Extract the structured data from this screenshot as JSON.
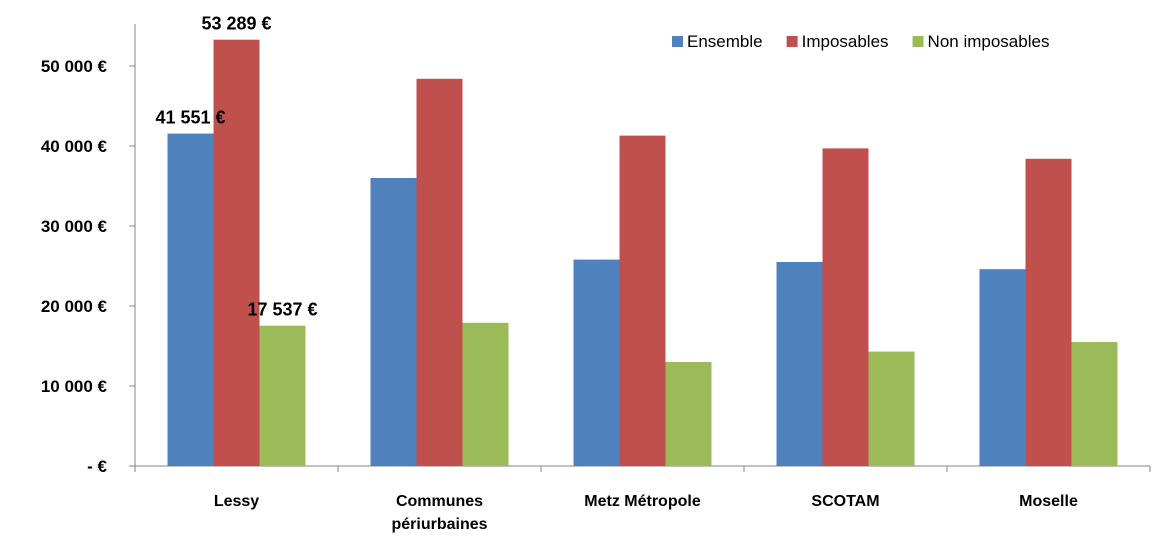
{
  "chart_data": {
    "type": "bar",
    "title": "",
    "xlabel": "",
    "ylabel": "",
    "ylim": [
      0,
      55000
    ],
    "yticks": [
      0,
      10000,
      20000,
      30000,
      40000,
      50000
    ],
    "ytick_labels": [
      "-   €",
      "10 000 €",
      "20 000 €",
      "30 000 €",
      "40 000 €",
      "50 000 €"
    ],
    "grid": false,
    "legend_position": "top-right",
    "categories": [
      [
        "Lessy"
      ],
      [
        "Communes",
        "périurbaines"
      ],
      [
        "Metz Métropole"
      ],
      [
        "SCOTAM"
      ],
      [
        "Moselle"
      ]
    ],
    "series": [
      {
        "name": "Ensemble",
        "color": "#4F81BD",
        "values": [
          41551,
          36000,
          25800,
          25500,
          24600
        ]
      },
      {
        "name": "Imposables",
        "color": "#C0504D",
        "values": [
          53289,
          48400,
          41300,
          39700,
          38400
        ]
      },
      {
        "name": "Non imposables",
        "color": "#9BBB59",
        "values": [
          17537,
          17900,
          13000,
          14300,
          15500
        ]
      }
    ],
    "data_labels": [
      {
        "series": 0,
        "category": 0,
        "text": "41 551 €"
      },
      {
        "series": 1,
        "category": 0,
        "text": "53 289 €"
      },
      {
        "series": 2,
        "category": 0,
        "text": "17 537 €"
      }
    ]
  }
}
